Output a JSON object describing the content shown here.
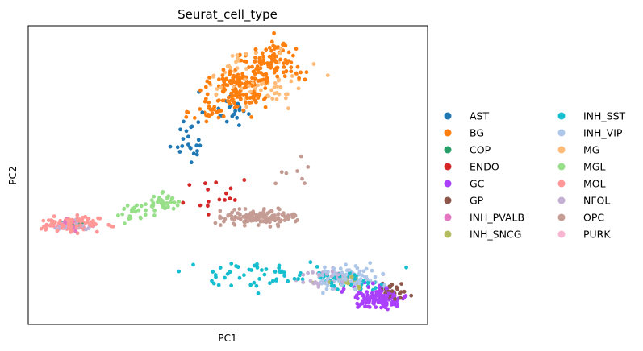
{
  "chart_data": {
    "type": "scatter",
    "title": "Seurat_cell_type",
    "xlabel": "PC1",
    "ylabel": "PC2",
    "x_ticks": false,
    "y_ticks": false,
    "xlim": [
      0,
      100
    ],
    "ylim": [
      0,
      100
    ],
    "legend_position": "right",
    "legend_columns": 2,
    "series": [
      {
        "name": "AST",
        "color": "#1f77b4",
        "clusters": [
          {
            "cx": 40,
            "cy": 62,
            "sx": 2.5,
            "sy": 4,
            "n": 22
          },
          {
            "cx": 50,
            "cy": 72,
            "sx": 3,
            "sy": 3,
            "n": 20
          }
        ]
      },
      {
        "name": "BG",
        "color": "#ff7f0e",
        "clusters": [
          {
            "cx": 53,
            "cy": 80,
            "sx": 3.5,
            "sy": 4,
            "n": 150
          },
          {
            "cx": 62,
            "cy": 88,
            "sx": 3.5,
            "sy": 3.5,
            "n": 90
          },
          {
            "cx": 46,
            "cy": 72,
            "sx": 2.5,
            "sy": 3,
            "n": 30
          }
        ]
      },
      {
        "name": "COP",
        "color": "#279e68",
        "clusters": [
          {
            "cx": 11.5,
            "cy": 33.5,
            "sx": 1.2,
            "sy": 0.7,
            "n": 12
          }
        ]
      },
      {
        "name": "ENDO",
        "color": "#d62728",
        "clusters": [
          {
            "cx": 48,
            "cy": 43,
            "sx": 5,
            "sy": 4,
            "n": 16
          }
        ]
      },
      {
        "name": "GC",
        "color": "#aa40fc",
        "clusters": [
          {
            "cx": 88,
            "cy": 9,
            "sx": 3.5,
            "sy": 1.8,
            "n": 140
          }
        ]
      },
      {
        "name": "GP",
        "color": "#8c564b",
        "clusters": [
          {
            "cx": 91.5,
            "cy": 11,
            "sx": 1.5,
            "sy": 1.5,
            "n": 30
          }
        ]
      },
      {
        "name": "INH_PVALB",
        "color": "#e377c2",
        "clusters": [
          {
            "cx": 11,
            "cy": 33,
            "sx": 2,
            "sy": 0.8,
            "n": 15
          }
        ]
      },
      {
        "name": "INH_SNCG",
        "color": "#b5bd61",
        "clusters": [
          {
            "cx": 80,
            "cy": 14,
            "sx": 3,
            "sy": 1.5,
            "n": 15
          }
        ]
      },
      {
        "name": "INH_SST",
        "color": "#17becf",
        "clusters": [
          {
            "cx": 60,
            "cy": 17,
            "sx": 12,
            "sy": 2,
            "n": 60
          },
          {
            "cx": 80,
            "cy": 14.5,
            "sx": 4,
            "sy": 1.5,
            "n": 35
          }
        ]
      },
      {
        "name": "INH_VIP",
        "color": "#aec7e8",
        "clusters": [
          {
            "cx": 80,
            "cy": 15.5,
            "sx": 4,
            "sy": 2,
            "n": 80
          }
        ]
      },
      {
        "name": "MG",
        "color": "#ffbb78",
        "clusters": [
          {
            "cx": 58,
            "cy": 82,
            "sx": 6,
            "sy": 5,
            "n": 70
          }
        ]
      },
      {
        "name": "MGL",
        "color": "#98df8a",
        "clusters": [
          {
            "cx": 34,
            "cy": 41,
            "sx": 2,
            "sy": 1.3,
            "n": 40
          },
          {
            "cx": 27,
            "cy": 38,
            "sx": 3,
            "sy": 1.5,
            "n": 25
          }
        ]
      },
      {
        "name": "MOL",
        "color": "#ff9896",
        "clusters": [
          {
            "cx": 11,
            "cy": 33.5,
            "sx": 3.5,
            "sy": 1.1,
            "n": 140
          }
        ]
      },
      {
        "name": "NFOL",
        "color": "#c5b0d5",
        "clusters": [
          {
            "cx": 10,
            "cy": 33,
            "sx": 2.5,
            "sy": 0.8,
            "n": 30
          },
          {
            "cx": 76,
            "cy": 15,
            "sx": 5,
            "sy": 2,
            "n": 40
          }
        ]
      },
      {
        "name": "OPC",
        "color": "#c49c94",
        "clusters": [
          {
            "cx": 58,
            "cy": 36,
            "sx": 4.5,
            "sy": 1.2,
            "n": 140
          },
          {
            "cx": 68,
            "cy": 52,
            "sx": 3,
            "sy": 3,
            "n": 8
          }
        ]
      },
      {
        "name": "PURK",
        "color": "#f7b6d2",
        "clusters": [
          {
            "cx": 10,
            "cy": 33.5,
            "sx": 1.5,
            "sy": 0.6,
            "n": 4
          }
        ]
      }
    ]
  }
}
